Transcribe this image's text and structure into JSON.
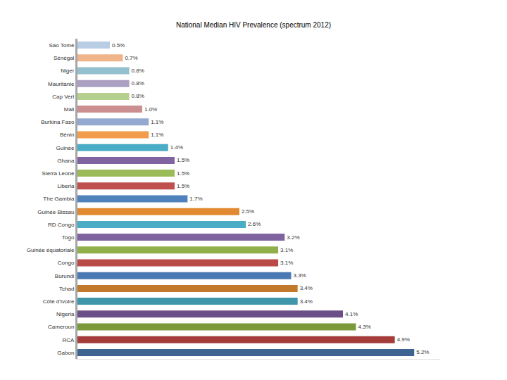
{
  "chart_data": {
    "type": "bar",
    "title": "National Median HIV Prevalence (spectrum 2012)",
    "orientation": "horizontal",
    "categories": [
      "Sao Tomé",
      "Sénégal",
      "Niger",
      "Mauritanie",
      "Cap Vert",
      "Mali",
      "Burkina Faso",
      "Bénin",
      "Guinée",
      "Ghana",
      "Sierra Leone",
      "Liberia",
      "The Gambia",
      "Guinée Bissau",
      "RD Congo",
      "Togo",
      "Guinée équatoriale",
      "Congo",
      "Burundi",
      "Tchad",
      "Côte d'Ivoire",
      "Nigeria",
      "Cameroun",
      "RCA",
      "Gabon"
    ],
    "values": [
      0.5,
      0.7,
      0.8,
      0.8,
      0.8,
      1.0,
      1.1,
      1.1,
      1.4,
      1.5,
      1.5,
      1.5,
      1.7,
      2.5,
      2.6,
      3.2,
      3.1,
      3.1,
      3.3,
      3.4,
      3.4,
      4.1,
      4.3,
      4.9,
      5.2
    ],
    "value_labels": [
      "0.5%",
      "0.7%",
      "0.8%",
      "0.8%",
      "0.8%",
      "1.0%",
      "1.1%",
      "1.1%",
      "1.4%",
      "1.5%",
      "1.5%",
      "1.5%",
      "1.7%",
      "2.5%",
      "2.6%",
      "3.2%",
      "3.1%",
      "3.1%",
      "3.3%",
      "3.4%",
      "3.4%",
      "4.1%",
      "4.3%",
      "4.9%",
      "5.2%"
    ],
    "colors": [
      "#b9cde5",
      "#f0b48a",
      "#93c0cf",
      "#ab9fc2",
      "#b5cf8e",
      "#cc8f8f",
      "#93a9cf",
      "#f29b4a",
      "#4aacc5",
      "#8064a2",
      "#9bbb59",
      "#c0504d",
      "#4f81bd",
      "#e0892e",
      "#4bacc6",
      "#7f63a1",
      "#8fb04a",
      "#b94a48",
      "#4a79b4",
      "#c3792c",
      "#3f96ab",
      "#6b5088",
      "#7a9a3c",
      "#a43c39",
      "#3e6591"
    ],
    "xlim": [
      0,
      5.6
    ],
    "data_labels": true,
    "tick_labels": "y",
    "grid": false
  }
}
